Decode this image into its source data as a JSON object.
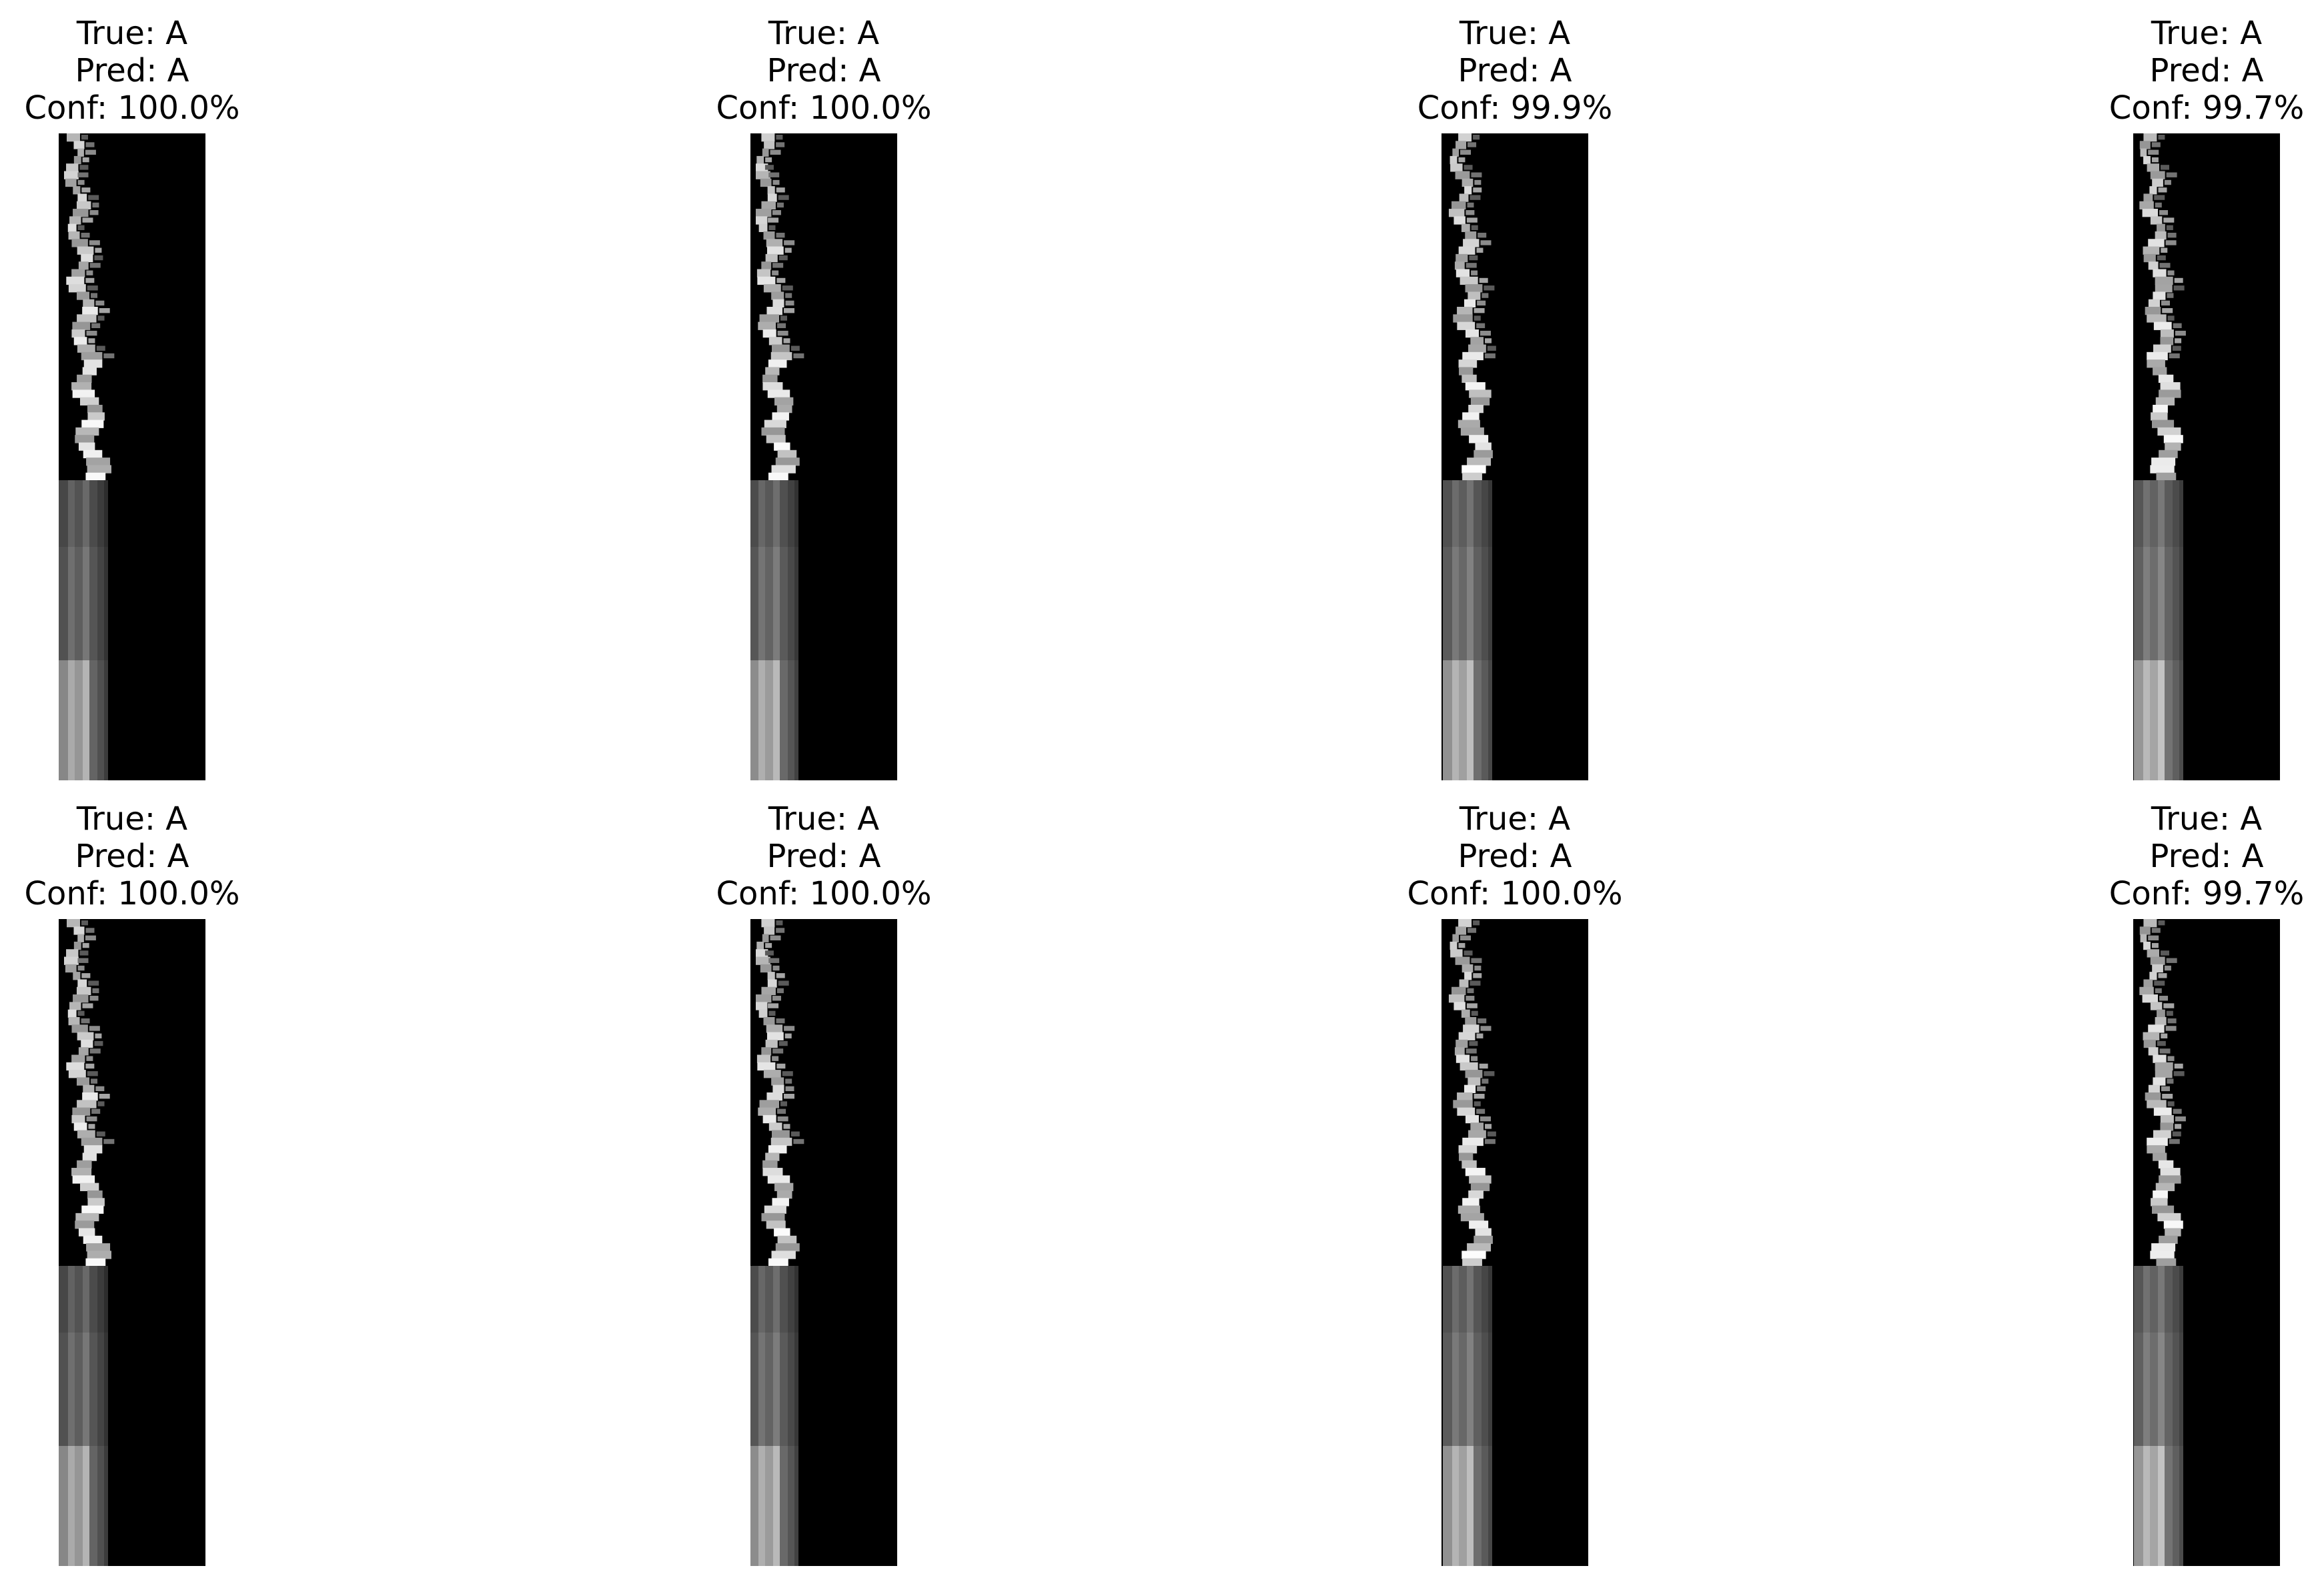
{
  "panels": [
    {
      "true_text": "True: A",
      "pred_text": "Pred: A",
      "conf_text": "Conf: 100.0%",
      "variant": 0
    },
    {
      "true_text": "True: A",
      "pred_text": "Pred: A",
      "conf_text": "Conf: 100.0%",
      "variant": 1
    },
    {
      "true_text": "True: A",
      "pred_text": "Pred: A",
      "conf_text": "Conf: 99.9%",
      "variant": 2
    },
    {
      "true_text": "True: A",
      "pred_text": "Pred: A",
      "conf_text": "Conf: 99.7%",
      "variant": 3
    },
    {
      "true_text": "True: A",
      "pred_text": "Pred: A",
      "conf_text": "Conf: 100.0%",
      "variant": 0
    },
    {
      "true_text": "True: A",
      "pred_text": "Pred: A",
      "conf_text": "Conf: 100.0%",
      "variant": 1
    },
    {
      "true_text": "True: A",
      "pred_text": "Pred: A",
      "conf_text": "Conf: 100.0%",
      "variant": 2
    },
    {
      "true_text": "True: A",
      "pred_text": "Pred: A",
      "conf_text": "Conf: 99.7%",
      "variant": 3
    }
  ],
  "colors": {
    "background": "#ffffff",
    "image_background": "#000000",
    "text": "#000000"
  }
}
